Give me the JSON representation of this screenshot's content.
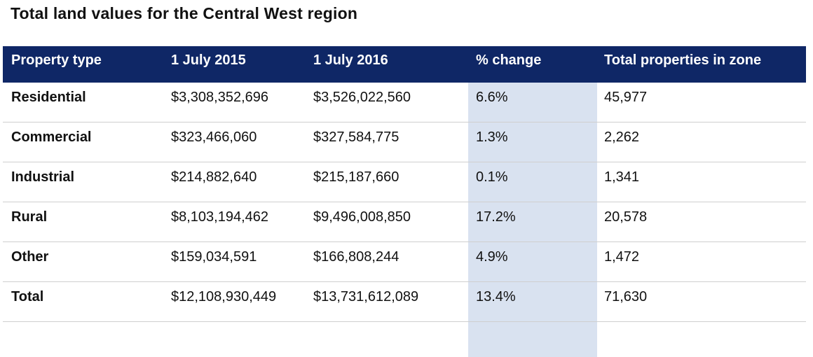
{
  "title": "Total land values for the Central West region",
  "headers": [
    "Property type",
    "1 July 2015",
    "1 July 2016",
    "% change",
    "Total properties in zone"
  ],
  "rows": [
    [
      "Residential",
      "$3,308,352,696",
      "$3,526,022,560",
      "6.6%",
      "45,977"
    ],
    [
      "Commercial",
      "$323,466,060",
      "$327,584,775",
      "1.3%",
      "2,262"
    ],
    [
      "Industrial",
      "$214,882,640",
      "$215,187,660",
      "0.1%",
      "1,341"
    ],
    [
      "Rural",
      "$8,103,194,462",
      "$9,496,008,850",
      "17.2%",
      "20,578"
    ],
    [
      "Other",
      "$159,034,591",
      "$166,808,244",
      "4.9%",
      "1,472"
    ],
    [
      "Total",
      "$12,108,930,449",
      "$13,731,612,089",
      "13.4%",
      "71,630"
    ]
  ],
  "colors": {
    "header_bg": "#0f2766",
    "highlight_column": "#d9e2f0"
  }
}
